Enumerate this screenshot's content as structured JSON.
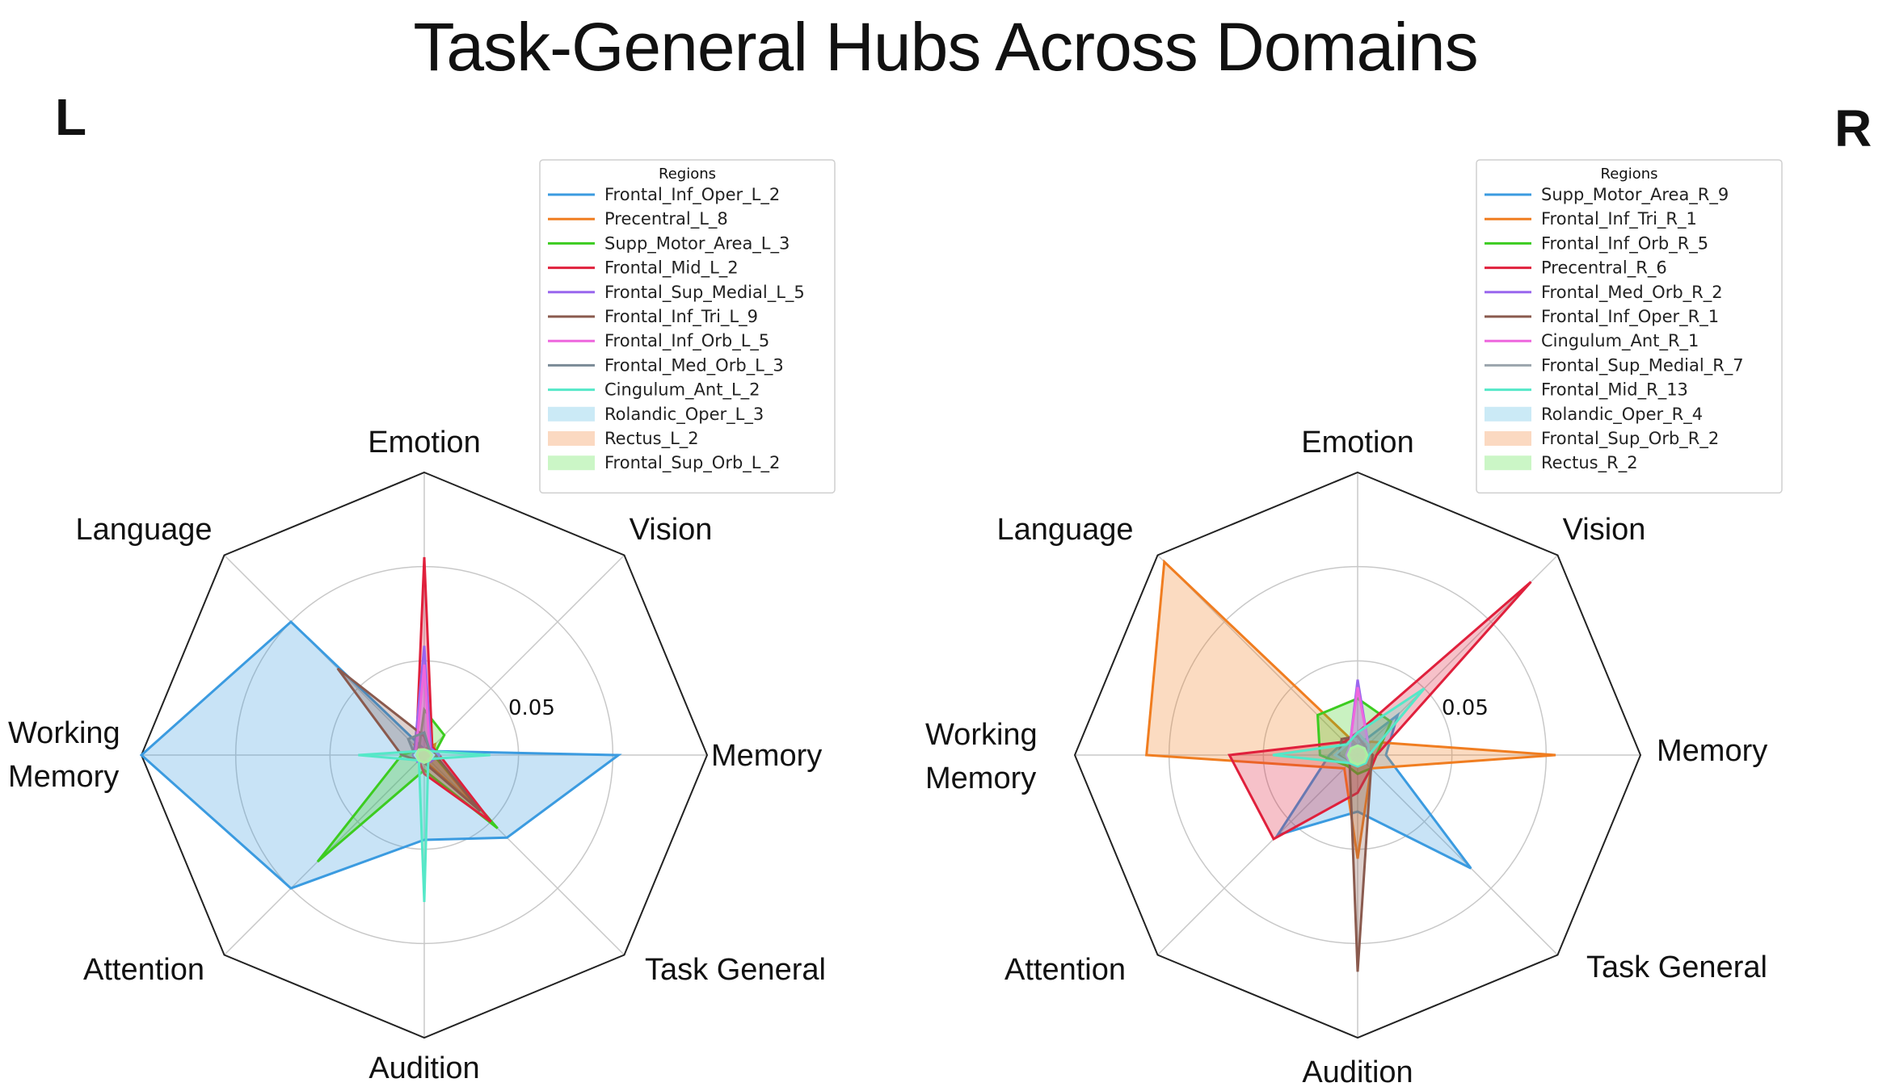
{
  "title": "Task-General Hubs Across Domains",
  "panels": {
    "left_label": "L",
    "right_label": "R"
  },
  "chart_data": [
    {
      "type": "radar",
      "panel": "L",
      "axes": [
        "Emotion",
        "Vision",
        "Memory",
        "Task General",
        "Audition",
        "Attention",
        "Working Memory",
        "Language"
      ],
      "radial_tick": "0.05",
      "rmax": 0.15,
      "legend_title": "Regions",
      "legend_placement": "top-right",
      "series": [
        {
          "name": "Frontal_Inf_Oper_L_2",
          "color": "#3b9be0",
          "fill": false,
          "values": [
            0.003,
            0.003,
            0.103,
            0.062,
            0.045,
            0.1,
            0.15,
            0.1
          ]
        },
        {
          "name": "Precentral_L_8",
          "color": "#f07d20",
          "fill": false,
          "values": [
            0.003,
            0.008,
            0.005,
            0.04,
            0.003,
            0.004,
            0.003,
            0.007
          ]
        },
        {
          "name": "Supp_Motor_Area_L_3",
          "color": "#3ccc20",
          "fill": false,
          "values": [
            0.024,
            0.015,
            0.005,
            0.055,
            0.008,
            0.08,
            0.012,
            0.004
          ]
        },
        {
          "name": "Frontal_Mid_L_2",
          "color": "#e0203c",
          "fill": false,
          "values": [
            0.105,
            0.006,
            0.008,
            0.05,
            0.01,
            0.004,
            0.004,
            0.006
          ]
        },
        {
          "name": "Frontal_Sup_Medial_L_5",
          "color": "#9966ee",
          "fill": false,
          "values": [
            0.058,
            0.005,
            0.008,
            0.005,
            0.004,
            0.005,
            0.006,
            0.007
          ]
        },
        {
          "name": "Frontal_Inf_Tri_L_9",
          "color": "#8a5a4e",
          "fill": false,
          "values": [
            0.01,
            0.004,
            0.006,
            0.042,
            0.004,
            0.004,
            0.012,
            0.065
          ]
        },
        {
          "name": "Frontal_Inf_Orb_L_5",
          "color": "#ee66dd",
          "fill": false,
          "values": [
            0.048,
            0.004,
            0.005,
            0.004,
            0.004,
            0.004,
            0.005,
            0.006
          ]
        },
        {
          "name": "Frontal_Med_Orb_L_3",
          "color": "#7a8a96",
          "fill": false,
          "values": [
            0.012,
            0.004,
            0.005,
            0.004,
            0.004,
            0.004,
            0.005,
            0.012
          ]
        },
        {
          "name": "Cingulum_Ant_L_2",
          "color": "#55e8c8",
          "fill": false,
          "values": [
            0.003,
            0.003,
            0.035,
            0.003,
            0.078,
            0.004,
            0.035,
            0.003
          ]
        },
        {
          "name": "Rolandic_Oper_L_3",
          "color": "#a8dcf0",
          "fill": true,
          "values": [
            0.003,
            0.003,
            0.005,
            0.004,
            0.004,
            0.004,
            0.005,
            0.004
          ]
        },
        {
          "name": "Rectus_L_2",
          "color": "#f8c098",
          "fill": true,
          "values": [
            0.003,
            0.003,
            0.004,
            0.004,
            0.004,
            0.004,
            0.004,
            0.004
          ]
        },
        {
          "name": "Frontal_Sup_Orb_L_2",
          "color": "#a8f0a0",
          "fill": true,
          "values": [
            0.003,
            0.003,
            0.004,
            0.004,
            0.004,
            0.004,
            0.004,
            0.004
          ]
        }
      ]
    },
    {
      "type": "radar",
      "panel": "R",
      "axes": [
        "Emotion",
        "Vision",
        "Memory",
        "Task General",
        "Audition",
        "Attention",
        "Working Memory",
        "Language"
      ],
      "radial_tick": "0.05",
      "rmax": 0.15,
      "legend_title": "Regions",
      "legend_placement": "top-right",
      "series": [
        {
          "name": "Supp_Motor_Area_R_9",
          "color": "#3b9be0",
          "fill": false,
          "values": [
            0.005,
            0.03,
            0.015,
            0.085,
            0.03,
            0.06,
            0.015,
            0.01
          ]
        },
        {
          "name": "Frontal_Inf_Tri_R_1",
          "color": "#f07d20",
          "fill": false,
          "values": [
            0.005,
            0.01,
            0.105,
            0.01,
            0.055,
            0.01,
            0.112,
            0.145
          ]
        },
        {
          "name": "Frontal_Inf_Orb_R_5",
          "color": "#3ccc20",
          "fill": false,
          "values": [
            0.03,
            0.025,
            0.01,
            0.01,
            0.01,
            0.008,
            0.02,
            0.03
          ]
        },
        {
          "name": "Precentral_R_6",
          "color": "#e0203c",
          "fill": false,
          "values": [
            0.012,
            0.13,
            0.01,
            0.01,
            0.02,
            0.063,
            0.068,
            0.01
          ]
        },
        {
          "name": "Frontal_Med_Orb_R_2",
          "color": "#9966ee",
          "fill": false,
          "values": [
            0.04,
            0.008,
            0.006,
            0.006,
            0.006,
            0.006,
            0.006,
            0.006
          ]
        },
        {
          "name": "Frontal_Inf_Oper_R_1",
          "color": "#8a5a4e",
          "fill": false,
          "values": [
            0.01,
            0.006,
            0.008,
            0.01,
            0.115,
            0.006,
            0.01,
            0.012
          ]
        },
        {
          "name": "Cingulum_Ant_R_1",
          "color": "#ee66dd",
          "fill": false,
          "values": [
            0.036,
            0.008,
            0.006,
            0.006,
            0.006,
            0.006,
            0.006,
            0.006
          ]
        },
        {
          "name": "Frontal_Sup_Medial_R_7",
          "color": "#9aa4ac",
          "fill": false,
          "values": [
            0.012,
            0.008,
            0.006,
            0.006,
            0.006,
            0.006,
            0.012,
            0.008
          ]
        },
        {
          "name": "Frontal_Mid_R_13",
          "color": "#55e8c8",
          "fill": false,
          "values": [
            0.012,
            0.05,
            0.006,
            0.006,
            0.006,
            0.006,
            0.045,
            0.008
          ]
        },
        {
          "name": "Rolandic_Oper_R_4",
          "color": "#a8dcf0",
          "fill": true,
          "values": [
            0.005,
            0.005,
            0.005,
            0.005,
            0.005,
            0.005,
            0.005,
            0.005
          ]
        },
        {
          "name": "Frontal_Sup_Orb_R_2",
          "color": "#f8c098",
          "fill": true,
          "values": [
            0.005,
            0.005,
            0.005,
            0.005,
            0.005,
            0.005,
            0.005,
            0.005
          ]
        },
        {
          "name": "Rectus_R_2",
          "color": "#a8f0a0",
          "fill": true,
          "values": [
            0.005,
            0.005,
            0.005,
            0.005,
            0.005,
            0.005,
            0.005,
            0.005
          ]
        }
      ]
    }
  ]
}
